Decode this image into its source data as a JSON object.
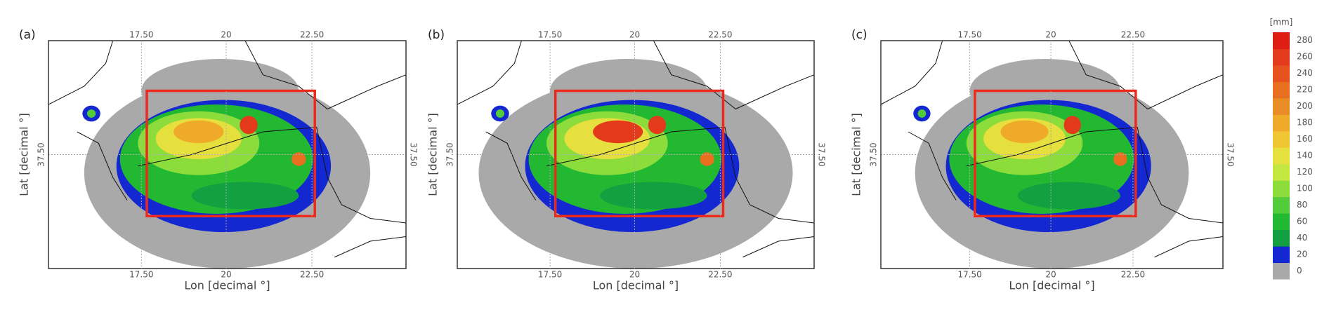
{
  "panels": [
    {
      "label": "(a)",
      "x_label": "Lon [decimal °]",
      "y_label": "Lat [decimal °]",
      "top_ticks": [
        "17.50",
        "20",
        "22.50"
      ],
      "bottom_ticks": [
        "17.50",
        "20",
        "22.50"
      ],
      "left_tick": "37.50",
      "right_tick": "37.50"
    },
    {
      "label": "(b)",
      "x_label": "Lon [decimal °]",
      "y_label": "Lat [decimal °]",
      "top_ticks": [
        "17.50",
        "20",
        "22.50"
      ],
      "bottom_ticks": [
        "17.50",
        "20",
        "22.50"
      ],
      "left_tick": "37.50",
      "right_tick": "37.50"
    },
    {
      "label": "(c)",
      "x_label": "Lon [decimal °]",
      "y_label": "Lat [decimal °]",
      "top_ticks": [
        "17.50",
        "20",
        "22.50"
      ],
      "bottom_ticks": [
        "17.50",
        "20",
        "22.50"
      ],
      "left_tick": "37.50",
      "right_tick": "37.50"
    }
  ],
  "colorbar": {
    "unit": "[mm]",
    "ticks": [
      "0",
      "20",
      "40",
      "60",
      "80",
      "100",
      "120",
      "140",
      "160",
      "180",
      "200",
      "220",
      "240",
      "260",
      "280"
    ],
    "colors": [
      "#a9a9a9",
      "#1428d2",
      "#12a040",
      "#22b832",
      "#52cc3a",
      "#8cdc3c",
      "#c4e640",
      "#e6e03e",
      "#f0c632",
      "#f0aa2a",
      "#ea8c24",
      "#e86e20",
      "#e6521e",
      "#e23a1a",
      "#de1e14"
    ]
  }
}
